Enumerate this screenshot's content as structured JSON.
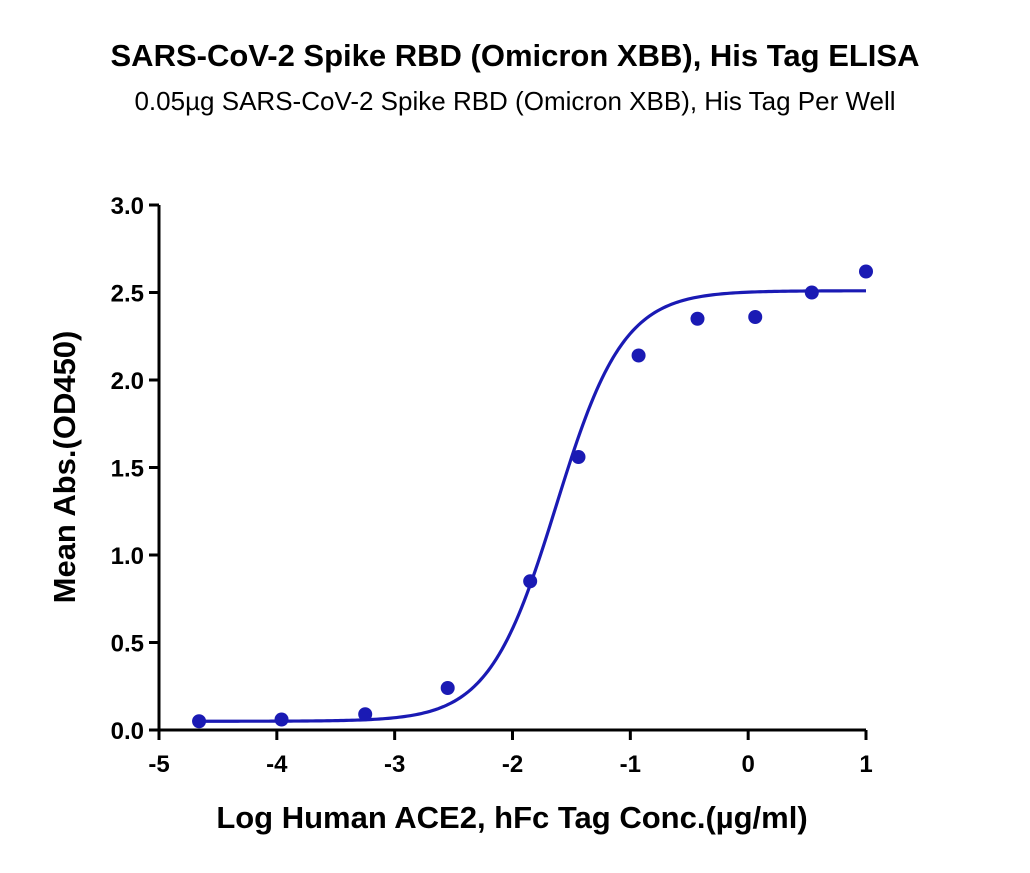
{
  "chart_data": {
    "type": "scatter",
    "title": "SARS-CoV-2 Spike RBD (Omicron XBB), His Tag ELISA",
    "subtitle": "0.05µg SARS-CoV-2 Spike RBD (Omicron XBB), His Tag Per Well",
    "xlabel": "Log Human ACE2, hFc Tag Conc.(µg/ml)",
    "ylabel": "Mean Abs.(OD450)",
    "xlim": [
      -5,
      1
    ],
    "ylim": [
      0,
      3.0
    ],
    "x_ticks": [
      -5,
      -4,
      -3,
      -2,
      -1,
      0,
      1
    ],
    "x_tick_labels": [
      "-5",
      "-4",
      "-3",
      "-2",
      "-1",
      "0",
      "1"
    ],
    "y_ticks": [
      0,
      0.5,
      1.0,
      1.5,
      2.0,
      2.5,
      3.0
    ],
    "y_tick_labels": [
      "0.0",
      "0.5",
      "1.0",
      "1.5",
      "2.0",
      "2.5",
      "3.0"
    ],
    "grid": false,
    "legend": "none",
    "color": "#1a1ab4",
    "series": [
      {
        "x": [
          -4.66,
          -3.96,
          -3.25,
          -2.55,
          -1.85,
          -1.44,
          -0.93,
          -0.43,
          0.06,
          0.54,
          1.0
        ],
        "y": [
          0.05,
          0.06,
          0.09,
          0.24,
          0.85,
          1.56,
          2.14,
          2.35,
          2.36,
          2.5,
          2.62
        ]
      }
    ],
    "fit": {
      "model": "four-parameter logistic",
      "bottom": 0.05,
      "top": 2.51,
      "log_ec50": -1.63,
      "hill_slope": 1.52
    }
  }
}
